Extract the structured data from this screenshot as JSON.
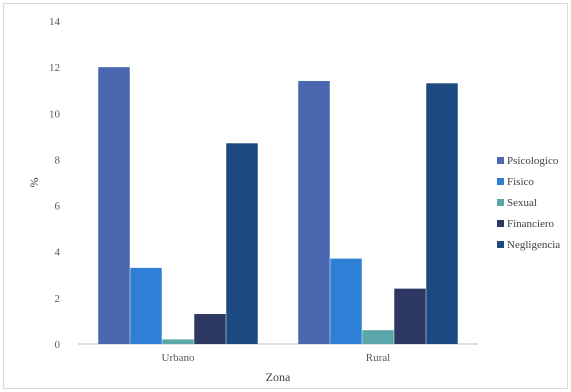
{
  "chart_data": {
    "type": "bar",
    "categories": [
      "Urbano",
      "Rural"
    ],
    "series": [
      {
        "name": "Psicologico",
        "values": [
          12.0,
          11.4
        ],
        "color": "#4a67b0"
      },
      {
        "name": "Fisico",
        "values": [
          3.3,
          3.7
        ],
        "color": "#2e7fd6"
      },
      {
        "name": "Sexual",
        "values": [
          0.2,
          0.6
        ],
        "color": "#5aa6a9"
      },
      {
        "name": "Financiero",
        "values": [
          1.3,
          2.4
        ],
        "color": "#2c3862"
      },
      {
        "name": "Negligencia",
        "values": [
          8.7,
          11.3
        ],
        "color": "#1c4a80"
      }
    ],
    "title": "",
    "xlabel": "Zona",
    "ylabel": "%",
    "ylim": [
      0,
      14
    ],
    "yticks": [
      "0",
      "2",
      "4",
      "6",
      "8",
      "10",
      "12",
      "14"
    ],
    "grid": false,
    "legend_position": "right"
  }
}
